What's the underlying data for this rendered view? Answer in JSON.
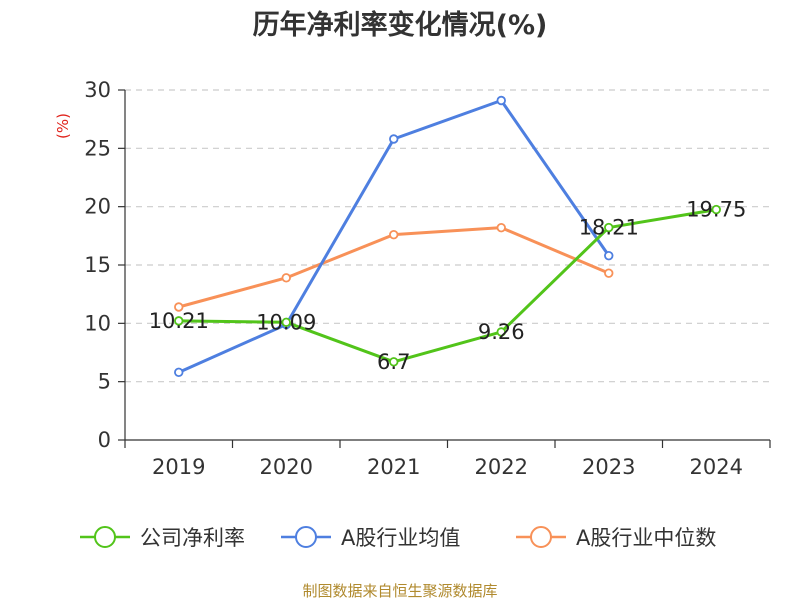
{
  "chart_data": {
    "type": "line",
    "title": "历年净利率变化情况(%)",
    "ylabel": "(%)",
    "xlabel": "",
    "categories": [
      "2019",
      "2020",
      "2021",
      "2022",
      "2023",
      "2024"
    ],
    "ylim": [
      0,
      30
    ],
    "yticks": [
      "0",
      "5",
      "10",
      "15",
      "20",
      "25",
      "30"
    ],
    "grid": true,
    "legend_position": "bottom",
    "series": [
      {
        "name": "公司净利率",
        "color": "#52c41a",
        "values": [
          10.21,
          10.09,
          6.7,
          9.26,
          18.21,
          19.75
        ],
        "labels": [
          "10.21",
          "10.09",
          "6.7",
          "9.26",
          "18.21",
          "19.75"
        ]
      },
      {
        "name": "A股行业均值",
        "color": "#4e7fe0",
        "values": [
          5.8,
          9.9,
          25.8,
          29.1,
          15.8,
          null
        ]
      },
      {
        "name": "A股行业中位数",
        "color": "#f89158",
        "values": [
          11.4,
          13.9,
          17.6,
          18.2,
          14.3,
          null
        ]
      }
    ],
    "source": "制图数据来自恒生聚源数据库"
  }
}
